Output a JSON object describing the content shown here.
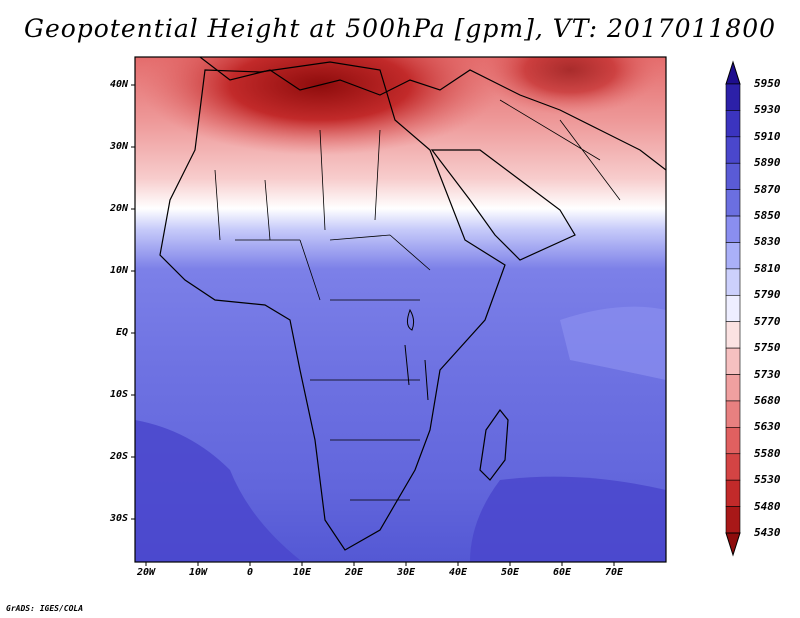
{
  "title": "Geopotential Height at 500hPa [gpm], VT: 2017011800",
  "credit": "GrADS: IGES/COLA",
  "map": {
    "region": "Africa and Middle East",
    "lat_labels": [
      "40N",
      "30N",
      "20N",
      "10N",
      "EQ",
      "10S",
      "20S",
      "30S"
    ],
    "lon_labels": [
      "20W",
      "10W",
      "0",
      "10E",
      "20E",
      "30E",
      "40E",
      "50E",
      "60E",
      "70E"
    ]
  },
  "colorbar": {
    "levels": [
      "5950",
      "5930",
      "5910",
      "5890",
      "5870",
      "5850",
      "5830",
      "5810",
      "5790",
      "5770",
      "5750",
      "5730",
      "5680",
      "5630",
      "5580",
      "5530",
      "5480",
      "5430"
    ],
    "colors": [
      "#1e0e8e",
      "#2c20a8",
      "#3b34bf",
      "#4a47cc",
      "#5a5bd6",
      "#6b6fe0",
      "#8a8ef0",
      "#aab0f8",
      "#ccd0fc",
      "#eeeeff",
      "#fbe2e2",
      "#f6c0c0",
      "#f0a0a0",
      "#e88080",
      "#e06060",
      "#d44444",
      "#c22a2a",
      "#a81818",
      "#8e0c0c"
    ]
  }
}
